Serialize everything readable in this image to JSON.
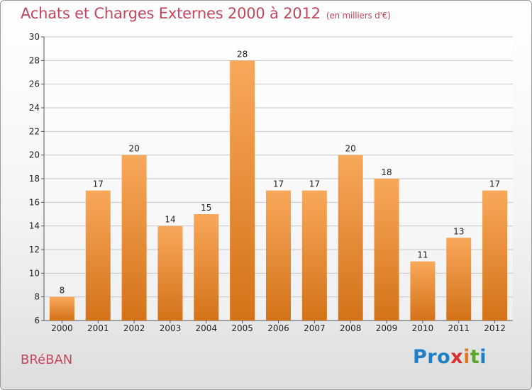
{
  "title": "Achats et Charges Externes 2000 à 2012",
  "unit": "(en milliers d'€)",
  "commune": "BRéBAN",
  "logo": {
    "p": "Pro",
    "x": "x",
    "i": "i",
    "t": "t",
    "i2": "i"
  },
  "colors": {
    "bar_top": "#f8a85a",
    "bar_bottom": "#d47218",
    "title": "#c2465e"
  },
  "chart_data": {
    "type": "bar",
    "title": "Achats et Charges Externes 2000 à 2012",
    "ylabel": "",
    "xlabel": "",
    "categories": [
      "2000",
      "2001",
      "2002",
      "2003",
      "2004",
      "2005",
      "2006",
      "2007",
      "2008",
      "2009",
      "2010",
      "2011",
      "2012"
    ],
    "values": [
      8,
      17,
      20,
      14,
      15,
      28,
      17,
      17,
      20,
      18,
      11,
      13,
      17
    ],
    "ylim": [
      6,
      30
    ],
    "yticks": [
      6,
      8,
      10,
      12,
      14,
      16,
      18,
      20,
      22,
      24,
      26,
      28,
      30
    ],
    "grid": true
  }
}
